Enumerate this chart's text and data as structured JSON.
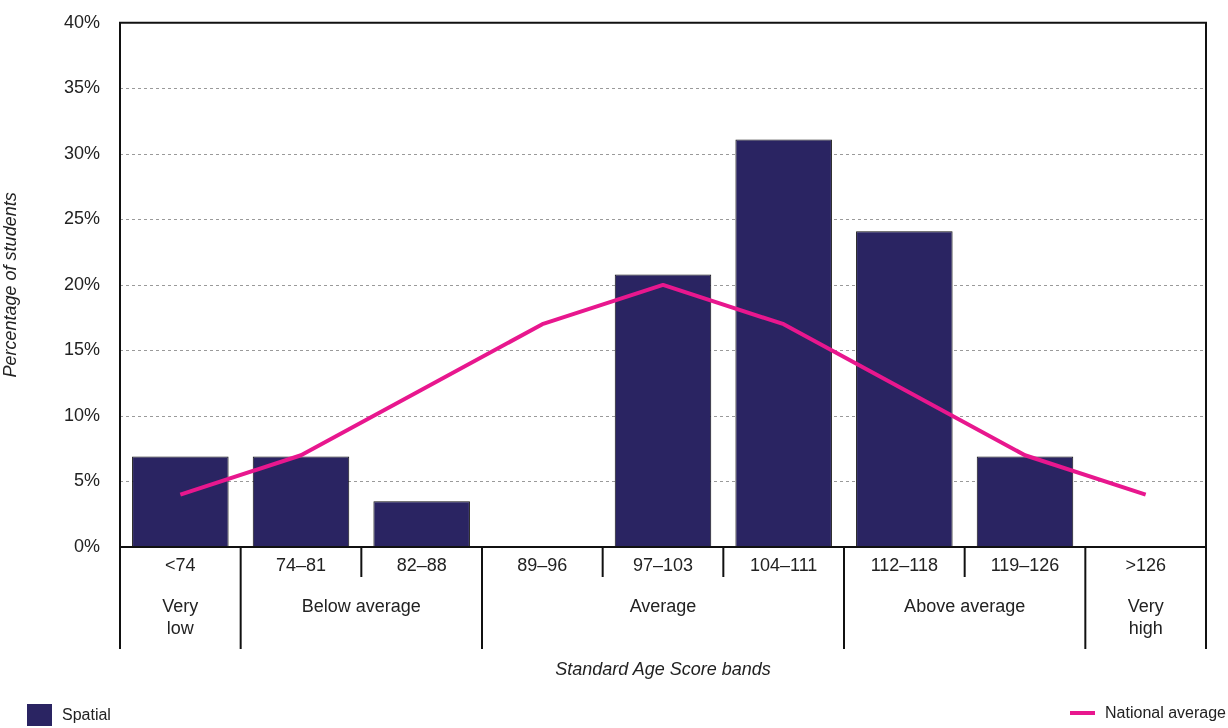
{
  "chart_data": {
    "type": "bar",
    "xlabel": "Standard Age Score bands",
    "ylabel": "Percentage of students",
    "categories": [
      "<74",
      "74–81",
      "82–88",
      "89–96",
      "97–103",
      "104–111",
      "112–118",
      "119–126",
      ">126"
    ],
    "series": [
      {
        "name": "Spatial",
        "color": "#2a2462",
        "values": [
          6.9,
          6.9,
          3.5,
          0,
          20.8,
          31.1,
          24.1,
          6.9,
          0
        ]
      },
      {
        "name": "National average",
        "type": "line",
        "color": "#e8178e",
        "values": [
          4,
          7,
          12,
          17,
          20,
          17,
          12,
          7,
          4
        ]
      }
    ],
    "ylim": [
      0,
      40
    ],
    "yticks": [
      {
        "value": 0,
        "label": "0%"
      },
      {
        "value": 5,
        "label": "5%"
      },
      {
        "value": 10,
        "label": "10%"
      },
      {
        "value": 15,
        "label": "15%"
      },
      {
        "value": 20,
        "label": "20%"
      },
      {
        "value": 25,
        "label": "25%"
      },
      {
        "value": 30,
        "label": "30%"
      },
      {
        "value": 35,
        "label": "35%"
      },
      {
        "value": 40,
        "label": "40%"
      }
    ],
    "grid": "y",
    "legend": "bottom",
    "marker": "none",
    "annotations": [
      "Very low",
      "Below average",
      "Average",
      "Above average",
      "Very high"
    ]
  }
}
